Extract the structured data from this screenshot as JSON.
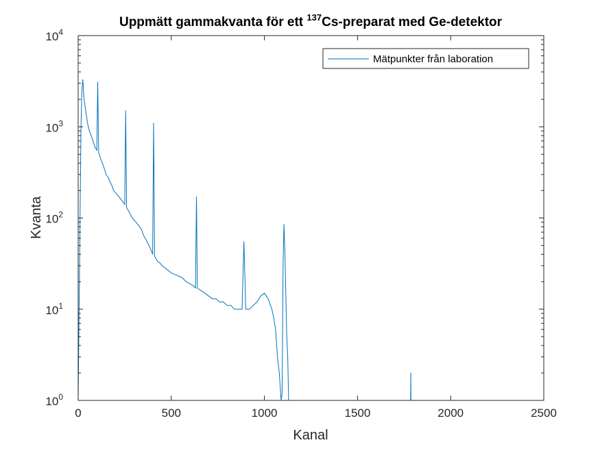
{
  "chart_data": {
    "type": "line",
    "title_parts": {
      "pre": "Uppmätt gammakvanta för ett ",
      "sup": "137",
      "post": "Cs-preparat med Ge-detektor"
    },
    "xlabel": "Kanal",
    "ylabel": "Kvanta",
    "xlim": [
      0,
      2500
    ],
    "ylim": [
      1,
      10000
    ],
    "yscale": "log",
    "grid": false,
    "legend_position": "top-right",
    "x_ticks": [
      0,
      500,
      1000,
      1500,
      2000,
      2500
    ],
    "y_ticks": [
      {
        "value": 1,
        "base": "10",
        "exp": "0"
      },
      {
        "value": 10,
        "base": "10",
        "exp": "1"
      },
      {
        "value": 100,
        "base": "10",
        "exp": "2"
      },
      {
        "value": 1000,
        "base": "10",
        "exp": "3"
      },
      {
        "value": 10000,
        "base": "10",
        "exp": "4"
      }
    ],
    "color": "#0072BD",
    "series": [
      {
        "name": "Mätpunkter från laboration",
        "x": [
          0,
          15,
          20,
          25,
          30,
          35,
          40,
          45,
          50,
          60,
          70,
          80,
          90,
          100,
          105,
          110,
          120,
          130,
          140,
          150,
          160,
          170,
          180,
          190,
          200,
          210,
          220,
          230,
          240,
          250,
          255,
          260,
          270,
          280,
          290,
          300,
          310,
          320,
          330,
          340,
          350,
          360,
          370,
          380,
          390,
          400,
          405,
          410,
          420,
          430,
          440,
          450,
          460,
          470,
          480,
          490,
          500,
          520,
          540,
          560,
          580,
          600,
          620,
          630,
          635,
          640,
          660,
          680,
          700,
          720,
          740,
          760,
          780,
          800,
          820,
          840,
          860,
          880,
          890,
          900,
          920,
          940,
          960,
          980,
          1000,
          1020,
          1040,
          1050,
          1060,
          1070,
          1080,
          1090,
          1095,
          1100,
          1105,
          1110,
          1115,
          1120,
          1125,
          1130,
          1785,
          1786,
          1787
        ],
        "y": [
          1,
          1000,
          2500,
          3300,
          2200,
          1800,
          1500,
          1300,
          1100,
          900,
          800,
          700,
          600,
          550,
          3100,
          520,
          450,
          400,
          350,
          300,
          280,
          250,
          230,
          200,
          190,
          180,
          170,
          160,
          150,
          140,
          1500,
          130,
          120,
          110,
          100,
          95,
          90,
          85,
          80,
          75,
          65,
          60,
          55,
          50,
          45,
          40,
          1100,
          38,
          35,
          33,
          32,
          30,
          29,
          28,
          27,
          26,
          25,
          24,
          23,
          22,
          20,
          19,
          18,
          17,
          170,
          17,
          16,
          15,
          14,
          13,
          13,
          12,
          12,
          11,
          11,
          10,
          10,
          10,
          55,
          10,
          10,
          11,
          12,
          14,
          15,
          13,
          10,
          8,
          6,
          3,
          2,
          1,
          1.2,
          30,
          85,
          40,
          15,
          5,
          3,
          1,
          1,
          2,
          1
        ]
      }
    ]
  }
}
